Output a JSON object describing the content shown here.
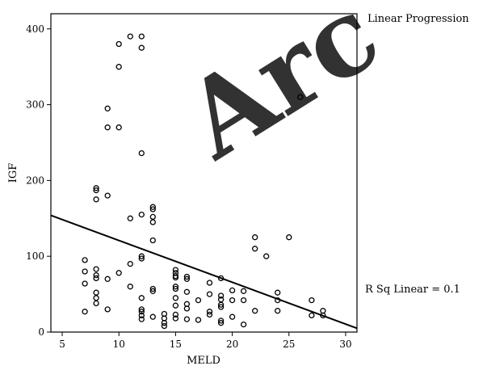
{
  "chart_data": {
    "type": "scatter",
    "xlabel": "MELD",
    "ylabel": "IGF",
    "xlim": [
      4,
      31
    ],
    "ylim": [
      0,
      420
    ],
    "xticks": [
      5,
      10,
      15,
      20,
      25,
      30
    ],
    "yticks": [
      0,
      100,
      200,
      300,
      400
    ],
    "xtick_labels": [
      "5",
      "10",
      "15",
      "20",
      "25",
      "30"
    ],
    "ytick_labels": [
      "0",
      "100",
      "200",
      "300",
      "400"
    ],
    "grid": false,
    "fit_label": "Linear Progression",
    "r_squared_label": "R Sq Linear = 0.1",
    "fit_line": {
      "x": [
        4,
        31
      ],
      "y": [
        154,
        5
      ]
    },
    "watermark": "Arc",
    "points": [
      [
        11,
        390
      ],
      [
        12,
        390
      ],
      [
        10,
        380
      ],
      [
        12,
        375
      ],
      [
        10,
        350
      ],
      [
        26,
        310
      ],
      [
        9,
        295
      ],
      [
        9,
        270
      ],
      [
        10,
        270
      ],
      [
        12,
        236
      ],
      [
        8,
        190
      ],
      [
        8,
        187
      ],
      [
        9,
        180
      ],
      [
        8,
        175
      ],
      [
        13,
        165
      ],
      [
        13,
        162
      ],
      [
        12,
        155
      ],
      [
        13,
        152
      ],
      [
        11,
        150
      ],
      [
        13,
        145
      ],
      [
        22,
        125
      ],
      [
        25,
        125
      ],
      [
        13,
        121
      ],
      [
        22,
        110
      ],
      [
        23,
        100
      ],
      [
        12,
        100
      ],
      [
        12,
        97
      ],
      [
        7,
        95
      ],
      [
        11,
        90
      ],
      [
        15,
        82
      ],
      [
        8,
        83
      ],
      [
        7,
        80
      ],
      [
        10,
        78
      ],
      [
        15,
        78
      ],
      [
        15,
        74
      ],
      [
        8,
        75
      ],
      [
        16,
        73
      ],
      [
        15,
        72
      ],
      [
        8,
        71
      ],
      [
        19,
        71
      ],
      [
        9,
        70
      ],
      [
        16,
        70
      ],
      [
        18,
        65
      ],
      [
        7,
        64
      ],
      [
        11,
        60
      ],
      [
        15,
        60
      ],
      [
        15,
        57
      ],
      [
        13,
        57
      ],
      [
        13,
        54
      ],
      [
        16,
        53
      ],
      [
        20,
        55
      ],
      [
        21,
        54
      ],
      [
        24,
        52
      ],
      [
        8,
        52
      ],
      [
        18,
        50
      ],
      [
        19,
        48
      ],
      [
        19,
        43
      ],
      [
        12,
        45
      ],
      [
        8,
        45
      ],
      [
        15,
        45
      ],
      [
        17,
        42
      ],
      [
        20,
        42
      ],
      [
        24,
        42
      ],
      [
        27,
        42
      ],
      [
        21,
        42
      ],
      [
        8,
        38
      ],
      [
        16,
        37
      ],
      [
        15,
        35
      ],
      [
        19,
        36
      ],
      [
        19,
        33
      ],
      [
        12,
        30
      ],
      [
        9,
        30
      ],
      [
        7,
        27
      ],
      [
        16,
        31
      ],
      [
        18,
        27
      ],
      [
        12,
        27
      ],
      [
        22,
        28
      ],
      [
        24,
        28
      ],
      [
        28,
        28
      ],
      [
        14,
        24
      ],
      [
        15,
        23
      ],
      [
        18,
        23
      ],
      [
        12,
        22
      ],
      [
        13,
        20
      ],
      [
        20,
        20
      ],
      [
        27,
        22
      ],
      [
        28,
        22
      ],
      [
        12,
        17
      ],
      [
        14,
        18
      ],
      [
        15,
        18
      ],
      [
        16,
        17
      ],
      [
        17,
        16
      ],
      [
        19,
        15
      ],
      [
        19,
        12
      ],
      [
        14,
        12
      ],
      [
        21,
        10
      ],
      [
        14,
        8
      ]
    ]
  }
}
